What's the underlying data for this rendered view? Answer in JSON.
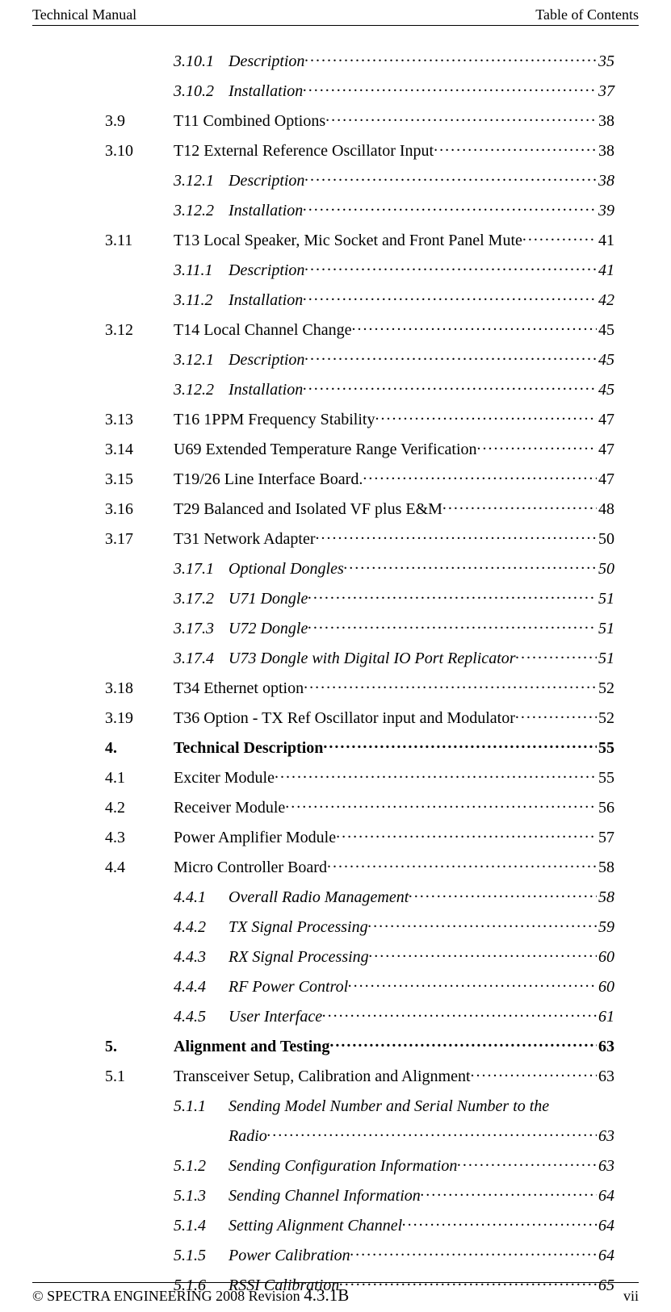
{
  "header": {
    "left": "Technical Manual",
    "right": "Table of Contents"
  },
  "footer": {
    "copyright_prefix": "© SPECTRA ENGINEERING 2008 Revision ",
    "revision": "4.3.1B",
    "page_roman": "vii"
  },
  "toc": [
    {
      "level": 3,
      "num": "3.10.1",
      "label": "Description",
      "page": "35",
      "italic": true,
      "numcol": "num-col-2"
    },
    {
      "level": 3,
      "num": "3.10.2",
      "label": "Installation",
      "page": "37",
      "italic": true,
      "numcol": "num-col-2"
    },
    {
      "level": 2,
      "num": "3.9",
      "label": "T11 Combined Options",
      "page": "38",
      "numcol": "num-col-1"
    },
    {
      "level": 2,
      "num": "3.10",
      "label": "T12 External Reference Oscillator Input",
      "page": "38",
      "numcol": "num-col-1"
    },
    {
      "level": 3,
      "num": "3.12.1",
      "label": "Description",
      "page": "38",
      "italic": true,
      "numcol": "num-col-2"
    },
    {
      "level": 3,
      "num": "3.12.2",
      "label": "Installation",
      "page": "39",
      "italic": true,
      "numcol": "num-col-2"
    },
    {
      "level": 2,
      "num": "3.11",
      "label": "T13 Local Speaker, Mic Socket and Front Panel Mute",
      "page": "41",
      "numcol": "num-col-1"
    },
    {
      "level": 3,
      "num": "3.11.1",
      "label": "Description",
      "page": "41",
      "italic": true,
      "numcol": "num-col-2"
    },
    {
      "level": 3,
      "num": "3.11.2",
      "label": "Installation",
      "page": "42",
      "italic": true,
      "numcol": "num-col-2"
    },
    {
      "level": 2,
      "num": "3.12",
      "label": "T14 Local Channel Change",
      "page": "45",
      "numcol": "num-col-1"
    },
    {
      "level": 3,
      "num": "3.12.1",
      "label": "Description",
      "page": "45",
      "italic": true,
      "numcol": "num-col-2"
    },
    {
      "level": 3,
      "num": "3.12.2",
      "label": "Installation",
      "page": "45",
      "italic": true,
      "numcol": "num-col-2"
    },
    {
      "level": 2,
      "num": "3.13",
      "label": "T16 1PPM Frequency Stability",
      "page": "47",
      "numcol": "num-col-1"
    },
    {
      "level": 2,
      "num": "3.14",
      "label": "U69 Extended Temperature Range Verification",
      "page": "47",
      "numcol": "num-col-1"
    },
    {
      "level": 2,
      "num": "3.15",
      "label": "T19/26 Line Interface Board.",
      "page": "47",
      "numcol": "num-col-1"
    },
    {
      "level": 2,
      "num": "3.16",
      "label": "T29 Balanced and Isolated VF plus E&M",
      "page": "48",
      "numcol": "num-col-1"
    },
    {
      "level": 2,
      "num": "3.17",
      "label": "T31 Network Adapter",
      "page": "50",
      "numcol": "num-col-1"
    },
    {
      "level": 3,
      "num": "3.17.1",
      "label": "Optional Dongles",
      "page": "50",
      "italic": true,
      "numcol": "num-col-2"
    },
    {
      "level": 3,
      "num": "3.17.2",
      "label": "U71 Dongle",
      "page": "51",
      "italic": true,
      "numcol": "num-col-2"
    },
    {
      "level": 3,
      "num": "3.17.3",
      "label": "U72 Dongle",
      "page": "51",
      "italic": true,
      "numcol": "num-col-2"
    },
    {
      "level": 3,
      "num": "3.17.4",
      "label": "U73 Dongle with Digital IO Port Replicator",
      "page": "51",
      "italic": true,
      "numcol": "num-col-2"
    },
    {
      "level": 2,
      "num": "3.18",
      "label": "T34 Ethernet option",
      "page": "52",
      "numcol": "num-col-1"
    },
    {
      "level": 2,
      "num": "3.19",
      "label": "T36 Option - TX Ref Oscillator input and Modulator",
      "page": "52",
      "numcol": "num-col-1"
    },
    {
      "level": 1,
      "num": "4.",
      "label": "Technical Description",
      "page": "55",
      "bold": true,
      "numcol": "num-col-1"
    },
    {
      "level": 2,
      "num": "4.1",
      "label": "Exciter Module",
      "page": "55",
      "numcol": "num-col-1"
    },
    {
      "level": 2,
      "num": "4.2",
      "label": "Receiver Module",
      "page": "56",
      "numcol": "num-col-1"
    },
    {
      "level": 2,
      "num": "4.3",
      "label": "Power Amplifier Module",
      "page": "57",
      "numcol": "num-col-1"
    },
    {
      "level": 2,
      "num": "4.4",
      "label": "Micro Controller Board",
      "page": "58",
      "numcol": "num-col-1"
    },
    {
      "level": 3,
      "num": "4.4.1",
      "label": "Overall Radio Management",
      "page": "58",
      "italic": true,
      "numcol": "num-col-2"
    },
    {
      "level": 3,
      "num": "4.4.2",
      "label": "TX Signal Processing",
      "page": "59",
      "italic": true,
      "numcol": "num-col-2"
    },
    {
      "level": 3,
      "num": "4.4.3",
      "label": "RX Signal Processing",
      "page": "60",
      "italic": true,
      "numcol": "num-col-2"
    },
    {
      "level": 3,
      "num": "4.4.4",
      "label": "RF Power Control",
      "page": "60",
      "italic": true,
      "numcol": "num-col-2"
    },
    {
      "level": 3,
      "num": "4.4.5",
      "label": "User Interface",
      "page": "61",
      "italic": true,
      "numcol": "num-col-2"
    },
    {
      "level": 1,
      "num": "5.",
      "label": "Alignment and Testing",
      "page": "63",
      "bold": true,
      "numcol": "num-col-1"
    },
    {
      "level": 2,
      "num": "5.1",
      "label": "Transceiver Setup, Calibration and Alignment",
      "page": "63",
      "numcol": "num-col-1"
    },
    {
      "level": 3,
      "num": "5.1.1",
      "label": "Sending Model Number and Serial Number to the",
      "page": "",
      "italic": true,
      "numcol": "num-col-2",
      "noleader": true
    },
    {
      "level": 3,
      "num": "",
      "label": "Radio",
      "page": "63",
      "italic": true,
      "numcol": "num-col-2"
    },
    {
      "level": 3,
      "num": "5.1.2",
      "label": "Sending Configuration Information",
      "page": "63",
      "italic": true,
      "numcol": "num-col-2"
    },
    {
      "level": 3,
      "num": "5.1.3",
      "label": "Sending Channel Information",
      "page": "64",
      "italic": true,
      "numcol": "num-col-2"
    },
    {
      "level": 3,
      "num": "5.1.4",
      "label": "Setting Alignment Channel",
      "page": "64",
      "italic": true,
      "numcol": "num-col-2"
    },
    {
      "level": 3,
      "num": "5.1.5",
      "label": "Power Calibration",
      "page": "64",
      "italic": true,
      "numcol": "num-col-2"
    },
    {
      "level": 3,
      "num": "5.1.6",
      "label": "RSSI Calibration",
      "page": "65",
      "italic": true,
      "numcol": "num-col-2"
    }
  ]
}
